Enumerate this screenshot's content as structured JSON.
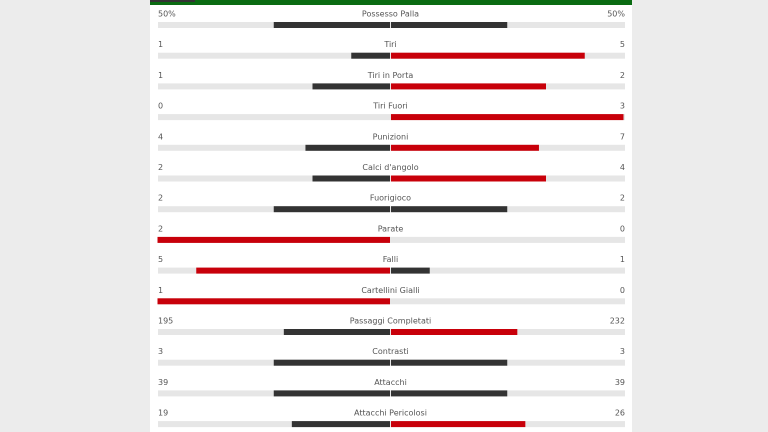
{
  "stats": [
    {
      "label": "Possesso Palla",
      "home": {
        "value": 50,
        "label": "50%"
      },
      "away": {
        "value": 50,
        "label": "50%"
      }
    },
    {
      "label": "Tiri",
      "home": 1,
      "away": 5
    },
    {
      "label": "Tiri in Porta",
      "home": 1,
      "away": 2
    },
    {
      "label": "Tiri Fuori",
      "home": 0,
      "away": 3
    },
    {
      "label": "Punizioni",
      "home": 4,
      "away": 7
    },
    {
      "label": "Calci d'angolo",
      "home": 2,
      "away": 4
    },
    {
      "label": "Fuorigioco",
      "home": 2,
      "away": 2
    },
    {
      "label": "Parate",
      "home": 2,
      "away": 0
    },
    {
      "label": "Falli",
      "home": 5,
      "away": 1
    },
    {
      "label": "Cartellini Gialli",
      "home": 1,
      "away": 0
    },
    {
      "label": "Passaggi Completati",
      "home": 195,
      "away": 232
    },
    {
      "label": "Contrasti",
      "home": 3,
      "away": 3
    },
    {
      "label": "Attacchi",
      "home": 39,
      "away": 39
    },
    {
      "label": "Attacchi Pericolosi",
      "home": 19,
      "away": 26
    }
  ]
}
